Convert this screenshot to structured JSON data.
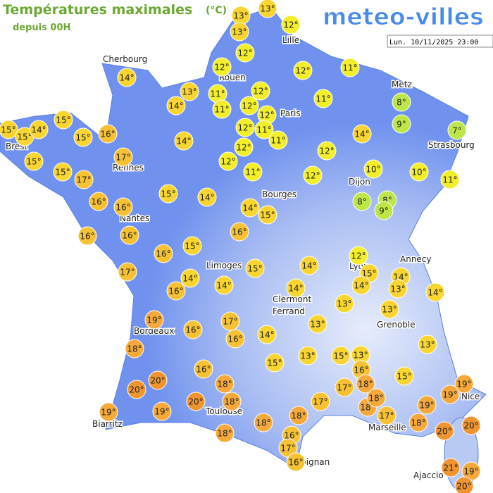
{
  "header": {
    "title": "Températures maximales",
    "unit": "(°C)",
    "subtitle": "depuis 00H",
    "brand": "meteo-villes",
    "timestamp": "Lun. 10/11/2025 23:00"
  },
  "cities": [
    "Cherbourg",
    "Lille",
    "Rouen",
    "Paris",
    "Metz",
    "Strasbourg",
    "Brest",
    "Rennes",
    "Dijon",
    "Bourges",
    "Nantes",
    "Limoges",
    "Annecy",
    "Lyon",
    "Clermont",
    "Ferrand",
    "Grenoble",
    "Bordeaux",
    "Nice",
    "Toulouse",
    "Marseille",
    "Biarritz",
    "Perpignan",
    "Ajaccio"
  ],
  "temperatures": [
    "13°",
    "13°",
    "13°",
    "12°",
    "12°",
    "12°",
    "12°",
    "11°",
    "14°",
    "13°",
    "14°",
    "11°",
    "11°",
    "12°",
    "12°",
    "12°",
    "11°",
    "8°",
    "9°",
    "7°",
    "15°",
    "15°",
    "14°",
    "15°",
    "15°",
    "16°",
    "12°",
    "11°",
    "11°",
    "14°",
    "14°",
    "15°",
    "17°",
    "12°",
    "12°",
    "12°",
    "11°",
    "12°",
    "10°",
    "10°",
    "11°",
    "15°",
    "17°",
    "15°",
    "14°",
    "16°",
    "16°",
    "14°",
    "15°",
    "8°",
    "8°",
    "9°",
    "16°",
    "16°",
    "16°",
    "16°",
    "15°",
    "17°",
    "14°",
    "16°",
    "14°",
    "15°",
    "14°",
    "12°",
    "15°",
    "14°",
    "14°",
    "13°",
    "14°",
    "14°",
    "13°",
    "13°",
    "19°",
    "16°",
    "17°",
    "16°",
    "14°",
    "13°",
    "18°",
    "15°",
    "13°",
    "15°",
    "13°",
    "13°",
    "16°",
    "16°",
    "15°",
    "20°",
    "20°",
    "18°",
    "17°",
    "18°",
    "19°",
    "19°",
    "17°",
    "20°",
    "18°",
    "18°",
    "18°",
    "19°",
    "19°",
    "19°",
    "18°",
    "18°",
    "17°",
    "18°",
    "20°",
    "20°",
    "18°",
    "16°",
    "17°",
    "16°",
    "21°",
    "19°",
    "20°"
  ]
}
